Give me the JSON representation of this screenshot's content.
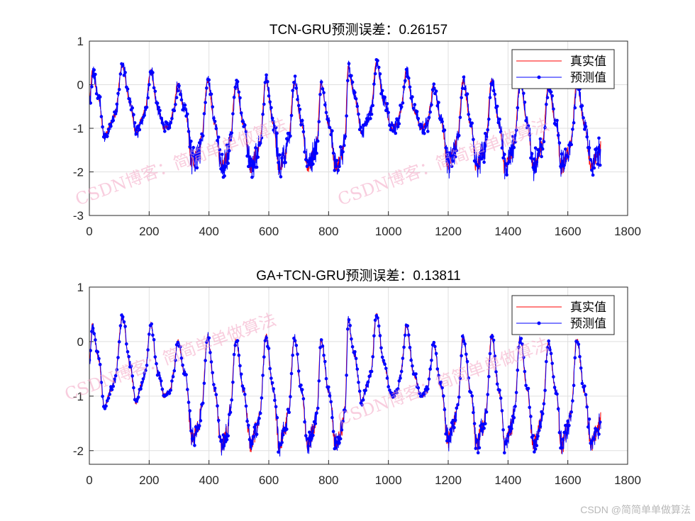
{
  "chart_data": [
    {
      "type": "line",
      "title": "TCN-GRU预测误差：0.26157",
      "xlim": [
        0,
        1800
      ],
      "ylim": [
        -3,
        1
      ],
      "xticks": [
        0,
        200,
        400,
        600,
        800,
        1000,
        1200,
        1400,
        1600,
        1800
      ],
      "yticks": [
        -3,
        -2,
        -1,
        0,
        1
      ],
      "grid": true,
      "legend": {
        "placement": "top-right",
        "entries": [
          "真实值",
          "预测值"
        ]
      },
      "series": [
        {
          "name": "真实值",
          "color": "#ff0000",
          "style": "line"
        },
        {
          "name": "预测值",
          "color": "#0000ff",
          "style": "line-with-dot-markers"
        }
      ]
    },
    {
      "type": "line",
      "title": "GA+TCN-GRU预测误差：0.13811",
      "xlim": [
        0,
        1800
      ],
      "ylim": [
        -2.25,
        1
      ],
      "xticks": [
        0,
        200,
        400,
        600,
        800,
        1000,
        1200,
        1400,
        1600,
        1800
      ],
      "yticks": [
        -2,
        -1,
        0,
        1
      ],
      "grid": true,
      "legend": {
        "placement": "top-right",
        "entries": [
          "真实值",
          "预测值"
        ]
      },
      "series": [
        {
          "name": "真实值",
          "color": "#ff0000",
          "style": "line"
        },
        {
          "name": "预测值",
          "color": "#0000ff",
          "style": "line-with-dot-markers"
        }
      ]
    }
  ],
  "true_series_keypoints": {
    "x": [
      0,
      10,
      30,
      50,
      70,
      85,
      110,
      135,
      155,
      175,
      185,
      205,
      230,
      250,
      270,
      280,
      295,
      320,
      345,
      365,
      375,
      395,
      420,
      440,
      460,
      470,
      490,
      515,
      540,
      560,
      570,
      590,
      615,
      635,
      655,
      665,
      685,
      710,
      730,
      750,
      760,
      775,
      800,
      825,
      845,
      855,
      865,
      885,
      910,
      930,
      940,
      960,
      985,
      1010,
      1030,
      1040,
      1060,
      1085,
      1110,
      1130,
      1140,
      1150,
      1175,
      1200,
      1220,
      1230,
      1250,
      1275,
      1295,
      1315,
      1325,
      1345,
      1370,
      1390,
      1410,
      1420,
      1440,
      1465,
      1485,
      1505,
      1515,
      1535,
      1560,
      1580,
      1600,
      1610,
      1630,
      1655,
      1680,
      1700,
      1710
    ],
    "y": [
      -0.4,
      0.3,
      -0.3,
      -1.2,
      -0.9,
      -0.7,
      0.45,
      -0.4,
      -1.1,
      -0.8,
      -0.6,
      0.3,
      -0.6,
      -1.0,
      -0.9,
      -0.6,
      0.0,
      -0.6,
      -1.8,
      -1.5,
      -1.2,
      0.1,
      -0.9,
      -1.9,
      -1.7,
      -1.3,
      0.05,
      -0.9,
      -1.9,
      -1.6,
      -1.3,
      0.1,
      -0.9,
      -1.9,
      -1.6,
      -1.3,
      0.05,
      -0.9,
      -1.9,
      -1.6,
      -1.3,
      0.05,
      -0.9,
      -1.9,
      -1.6,
      -1.2,
      0.4,
      -0.2,
      -1.1,
      -0.8,
      -0.6,
      0.5,
      -0.4,
      -1.0,
      -0.9,
      -0.6,
      0.3,
      -0.6,
      -1.0,
      -0.9,
      -0.5,
      0.0,
      -0.8,
      -1.8,
      -1.5,
      -1.2,
      0.1,
      -0.9,
      -1.9,
      -1.6,
      -1.3,
      0.1,
      -0.9,
      -1.9,
      -1.6,
      -1.3,
      0.05,
      -0.9,
      -1.9,
      -1.6,
      -1.3,
      0.0,
      -0.9,
      -1.9,
      -1.6,
      -1.3,
      0.05,
      -0.9,
      -1.9,
      -1.6,
      -1.45
    ]
  },
  "watermark": "CSDN博客：简简单单做算法",
  "footer": "CSDN @简简单单做算法"
}
